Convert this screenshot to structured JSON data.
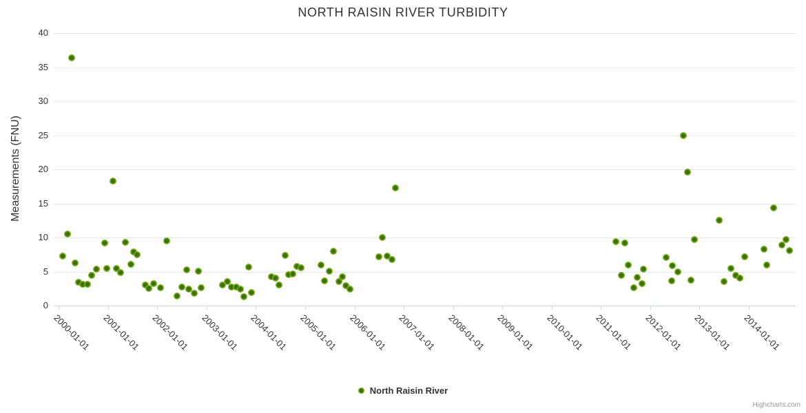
{
  "title": "NORTH RAISIN RIVER TURBIDITY",
  "credits_label": "Highcharts.com",
  "legend": {
    "label": "North Raisin River"
  },
  "colors": {
    "marker_outer": "#8ccb28",
    "marker_inner": "#3a6c08",
    "grid": "#e6e6e6",
    "axis_line": "#ccd6eb",
    "text": "#333333",
    "credits_text": "#999999"
  },
  "chart_data": {
    "type": "scatter",
    "title": "NORTH RAISIN RIVER TURBIDITY",
    "xlabel": "",
    "ylabel": "Measurements (FNU)",
    "ylim": [
      0,
      40
    ],
    "xlim": [
      1999.9,
      2014.95
    ],
    "grid": true,
    "legend_position": "bottom-center",
    "y_ticks": [
      0,
      5,
      10,
      15,
      20,
      25,
      30,
      35,
      40
    ],
    "x_ticks": [
      {
        "x": 2000,
        "label": "2000-01-01"
      },
      {
        "x": 2001,
        "label": "2001-01-01"
      },
      {
        "x": 2002,
        "label": "2002-01-01"
      },
      {
        "x": 2003,
        "label": "2003-01-01"
      },
      {
        "x": 2004,
        "label": "2004-01-01"
      },
      {
        "x": 2005,
        "label": "2005-01-01"
      },
      {
        "x": 2006,
        "label": "2006-01-01"
      },
      {
        "x": 2007,
        "label": "2007-01-01"
      },
      {
        "x": 2008,
        "label": "2008-01-01"
      },
      {
        "x": 2009,
        "label": "2009-01-01"
      },
      {
        "x": 2010,
        "label": "2010-01-01"
      },
      {
        "x": 2011,
        "label": "2011-01-01"
      },
      {
        "x": 2012,
        "label": "2012-01-01"
      },
      {
        "x": 2013,
        "label": "2013-01-01"
      },
      {
        "x": 2014,
        "label": "2014-01-01"
      }
    ],
    "series": [
      {
        "name": "North Raisin River",
        "points": [
          [
            2000.08,
            7.3
          ],
          [
            2000.18,
            10.5
          ],
          [
            2000.26,
            36.4
          ],
          [
            2000.33,
            6.3
          ],
          [
            2000.41,
            3.4
          ],
          [
            2000.48,
            3.1
          ],
          [
            2000.59,
            3.1
          ],
          [
            2000.67,
            4.4
          ],
          [
            2000.77,
            5.4
          ],
          [
            2000.94,
            9.2
          ],
          [
            2000.97,
            5.5
          ],
          [
            2001.1,
            18.3
          ],
          [
            2001.17,
            5.5
          ],
          [
            2001.26,
            4.8
          ],
          [
            2001.35,
            9.3
          ],
          [
            2001.46,
            6.1
          ],
          [
            2001.52,
            7.9
          ],
          [
            2001.59,
            7.5
          ],
          [
            2001.76,
            3.0
          ],
          [
            2001.83,
            2.5
          ],
          [
            2001.92,
            3.2
          ],
          [
            2002.06,
            2.6
          ],
          [
            2002.19,
            9.5
          ],
          [
            2002.4,
            1.4
          ],
          [
            2002.5,
            2.7
          ],
          [
            2002.59,
            5.3
          ],
          [
            2002.64,
            2.4
          ],
          [
            2002.75,
            1.8
          ],
          [
            2002.84,
            5.1
          ],
          [
            2002.89,
            2.6
          ],
          [
            2003.33,
            3.0
          ],
          [
            2003.42,
            3.5
          ],
          [
            2003.51,
            2.7
          ],
          [
            2003.6,
            2.7
          ],
          [
            2003.68,
            2.4
          ],
          [
            2003.75,
            1.3
          ],
          [
            2003.86,
            5.7
          ],
          [
            2003.91,
            1.9
          ],
          [
            2004.31,
            4.2
          ],
          [
            2004.4,
            4.0
          ],
          [
            2004.47,
            3.0
          ],
          [
            2004.6,
            7.4
          ],
          [
            2004.66,
            4.5
          ],
          [
            2004.75,
            4.6
          ],
          [
            2004.83,
            5.8
          ],
          [
            2004.92,
            5.6
          ],
          [
            2005.32,
            6.0
          ],
          [
            2005.39,
            3.6
          ],
          [
            2005.49,
            5.1
          ],
          [
            2005.57,
            8.0
          ],
          [
            2005.68,
            3.5
          ],
          [
            2005.76,
            4.2
          ],
          [
            2005.83,
            2.9
          ],
          [
            2005.91,
            2.4
          ],
          [
            2006.5,
            7.2
          ],
          [
            2006.57,
            10.0
          ],
          [
            2006.67,
            7.3
          ],
          [
            2006.76,
            6.8
          ],
          [
            2006.83,
            17.3
          ],
          [
            2011.3,
            9.4
          ],
          [
            2011.42,
            4.4
          ],
          [
            2011.48,
            9.2
          ],
          [
            2011.56,
            6.0
          ],
          [
            2011.67,
            2.6
          ],
          [
            2011.74,
            4.1
          ],
          [
            2011.83,
            3.2
          ],
          [
            2011.86,
            5.4
          ],
          [
            2012.32,
            7.1
          ],
          [
            2012.43,
            3.6
          ],
          [
            2012.45,
            5.9
          ],
          [
            2012.56,
            4.9
          ],
          [
            2012.67,
            24.9
          ],
          [
            2012.75,
            19.6
          ],
          [
            2012.83,
            3.7
          ],
          [
            2012.9,
            9.7
          ],
          [
            2013.4,
            12.5
          ],
          [
            2013.49,
            3.5
          ],
          [
            2013.64,
            5.5
          ],
          [
            2013.73,
            4.4
          ],
          [
            2013.82,
            4.0
          ],
          [
            2013.91,
            7.2
          ],
          [
            2014.31,
            8.3
          ],
          [
            2014.37,
            6.0
          ],
          [
            2014.5,
            14.3
          ],
          [
            2014.67,
            8.9
          ],
          [
            2014.75,
            9.7
          ],
          [
            2014.82,
            8.1
          ]
        ]
      }
    ]
  }
}
